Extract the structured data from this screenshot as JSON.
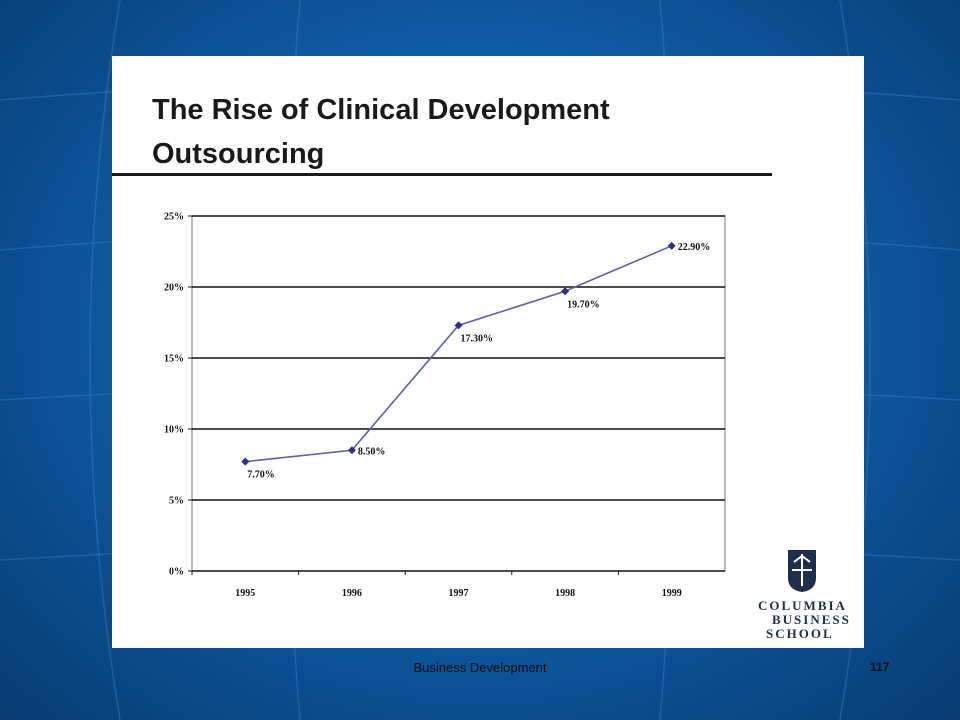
{
  "slide": {
    "footer": "Business Development",
    "page_number": "117"
  },
  "logo": {
    "line1": "COLUMBIA",
    "line2": "BUSINESS",
    "line3": "SCHOOL"
  },
  "colors": {
    "background": "#0f5fa8",
    "series_line": "#5a5fb0",
    "marker": "#2a2f8a",
    "logo_navy": "#1e2f4e"
  },
  "chart_data": {
    "type": "line",
    "title": "The Rise of Clinical Development Outsourcing",
    "xlabel": "",
    "ylabel": "",
    "categories": [
      "1995",
      "1996",
      "1997",
      "1998",
      "1999"
    ],
    "series": [
      {
        "values": [
          7.7,
          8.5,
          17.3,
          19.7,
          22.9
        ],
        "labels": [
          "7.70%",
          "8.50%",
          "17.30%",
          "19.70%",
          "22.90%"
        ]
      }
    ],
    "y_ticks": [
      "0%",
      "5%",
      "10%",
      "15%",
      "20%",
      "25%"
    ],
    "ylim": [
      0,
      25
    ],
    "grid": true,
    "legend": "none"
  }
}
